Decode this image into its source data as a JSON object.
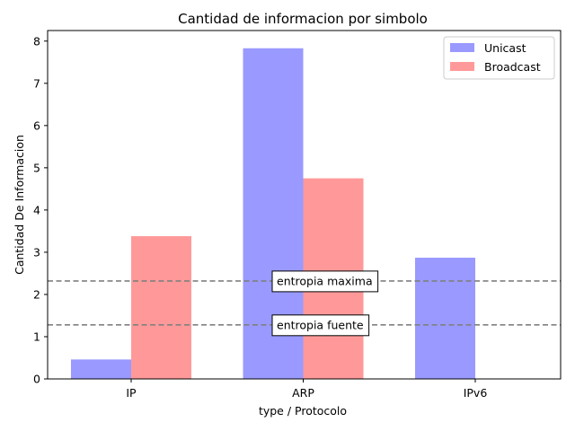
{
  "chart_data": {
    "type": "bar",
    "title": "Cantidad de informacion por simbolo",
    "xlabel": "type / Protocolo",
    "ylabel": "Cantidad De Informacion",
    "categories": [
      "IP",
      "ARP",
      "IPv6"
    ],
    "series": [
      {
        "name": "Unicast",
        "values": [
          0.46,
          7.83,
          2.87
        ],
        "color": "#9999ff"
      },
      {
        "name": "Broadcast",
        "values": [
          3.38,
          4.75,
          0
        ],
        "color": "#ff9999"
      }
    ],
    "ylim": [
      0,
      8.25
    ],
    "yticks": [
      0,
      1,
      2,
      3,
      4,
      5,
      6,
      7,
      8
    ],
    "reference_lines": [
      {
        "label": "entropia maxima",
        "value": 2.32,
        "color": "#808080"
      },
      {
        "label": "entropia fuente",
        "value": 1.28,
        "color": "#808080"
      }
    ],
    "legend_position": "top-right",
    "grid": false
  }
}
